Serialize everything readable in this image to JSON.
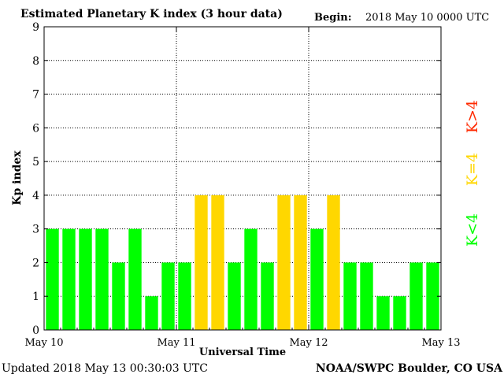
{
  "header": {
    "title": "Estimated Planetary K index (3 hour data)",
    "begin_label": "Begin:",
    "begin_value": "2018 May 10 0000 UTC"
  },
  "footer": {
    "updated": "Updated 2018 May 13 00:30:03 UTC",
    "source": "NOAA/SWPC Boulder, CO USA"
  },
  "colors": {
    "green": "#00ff00",
    "yellow": "#ffd700",
    "red": "#ff2a00"
  },
  "legend": [
    {
      "label": "K<4",
      "color": "#00ff00"
    },
    {
      "label": "K=4",
      "color": "#ffd700"
    },
    {
      "label": "K>4",
      "color": "#ff2a00"
    }
  ],
  "chart_data": {
    "type": "bar",
    "title": "Estimated Planetary K index (3 hour data)",
    "xlabel": "Universal Time",
    "ylabel": "Kp index",
    "ylim": [
      0,
      9
    ],
    "yticks": [
      "0",
      "1",
      "2",
      "3",
      "4",
      "5",
      "6",
      "7",
      "8",
      "9"
    ],
    "xticks": [
      "May 10",
      "May 11",
      "May 12",
      "May 13"
    ],
    "grid": true,
    "legend_position": "right",
    "values": [
      3,
      3,
      3,
      3,
      2,
      3,
      1,
      2,
      2,
      4,
      4,
      2,
      3,
      2,
      4,
      4,
      3,
      4,
      2,
      2,
      1,
      1,
      2,
      2
    ]
  }
}
